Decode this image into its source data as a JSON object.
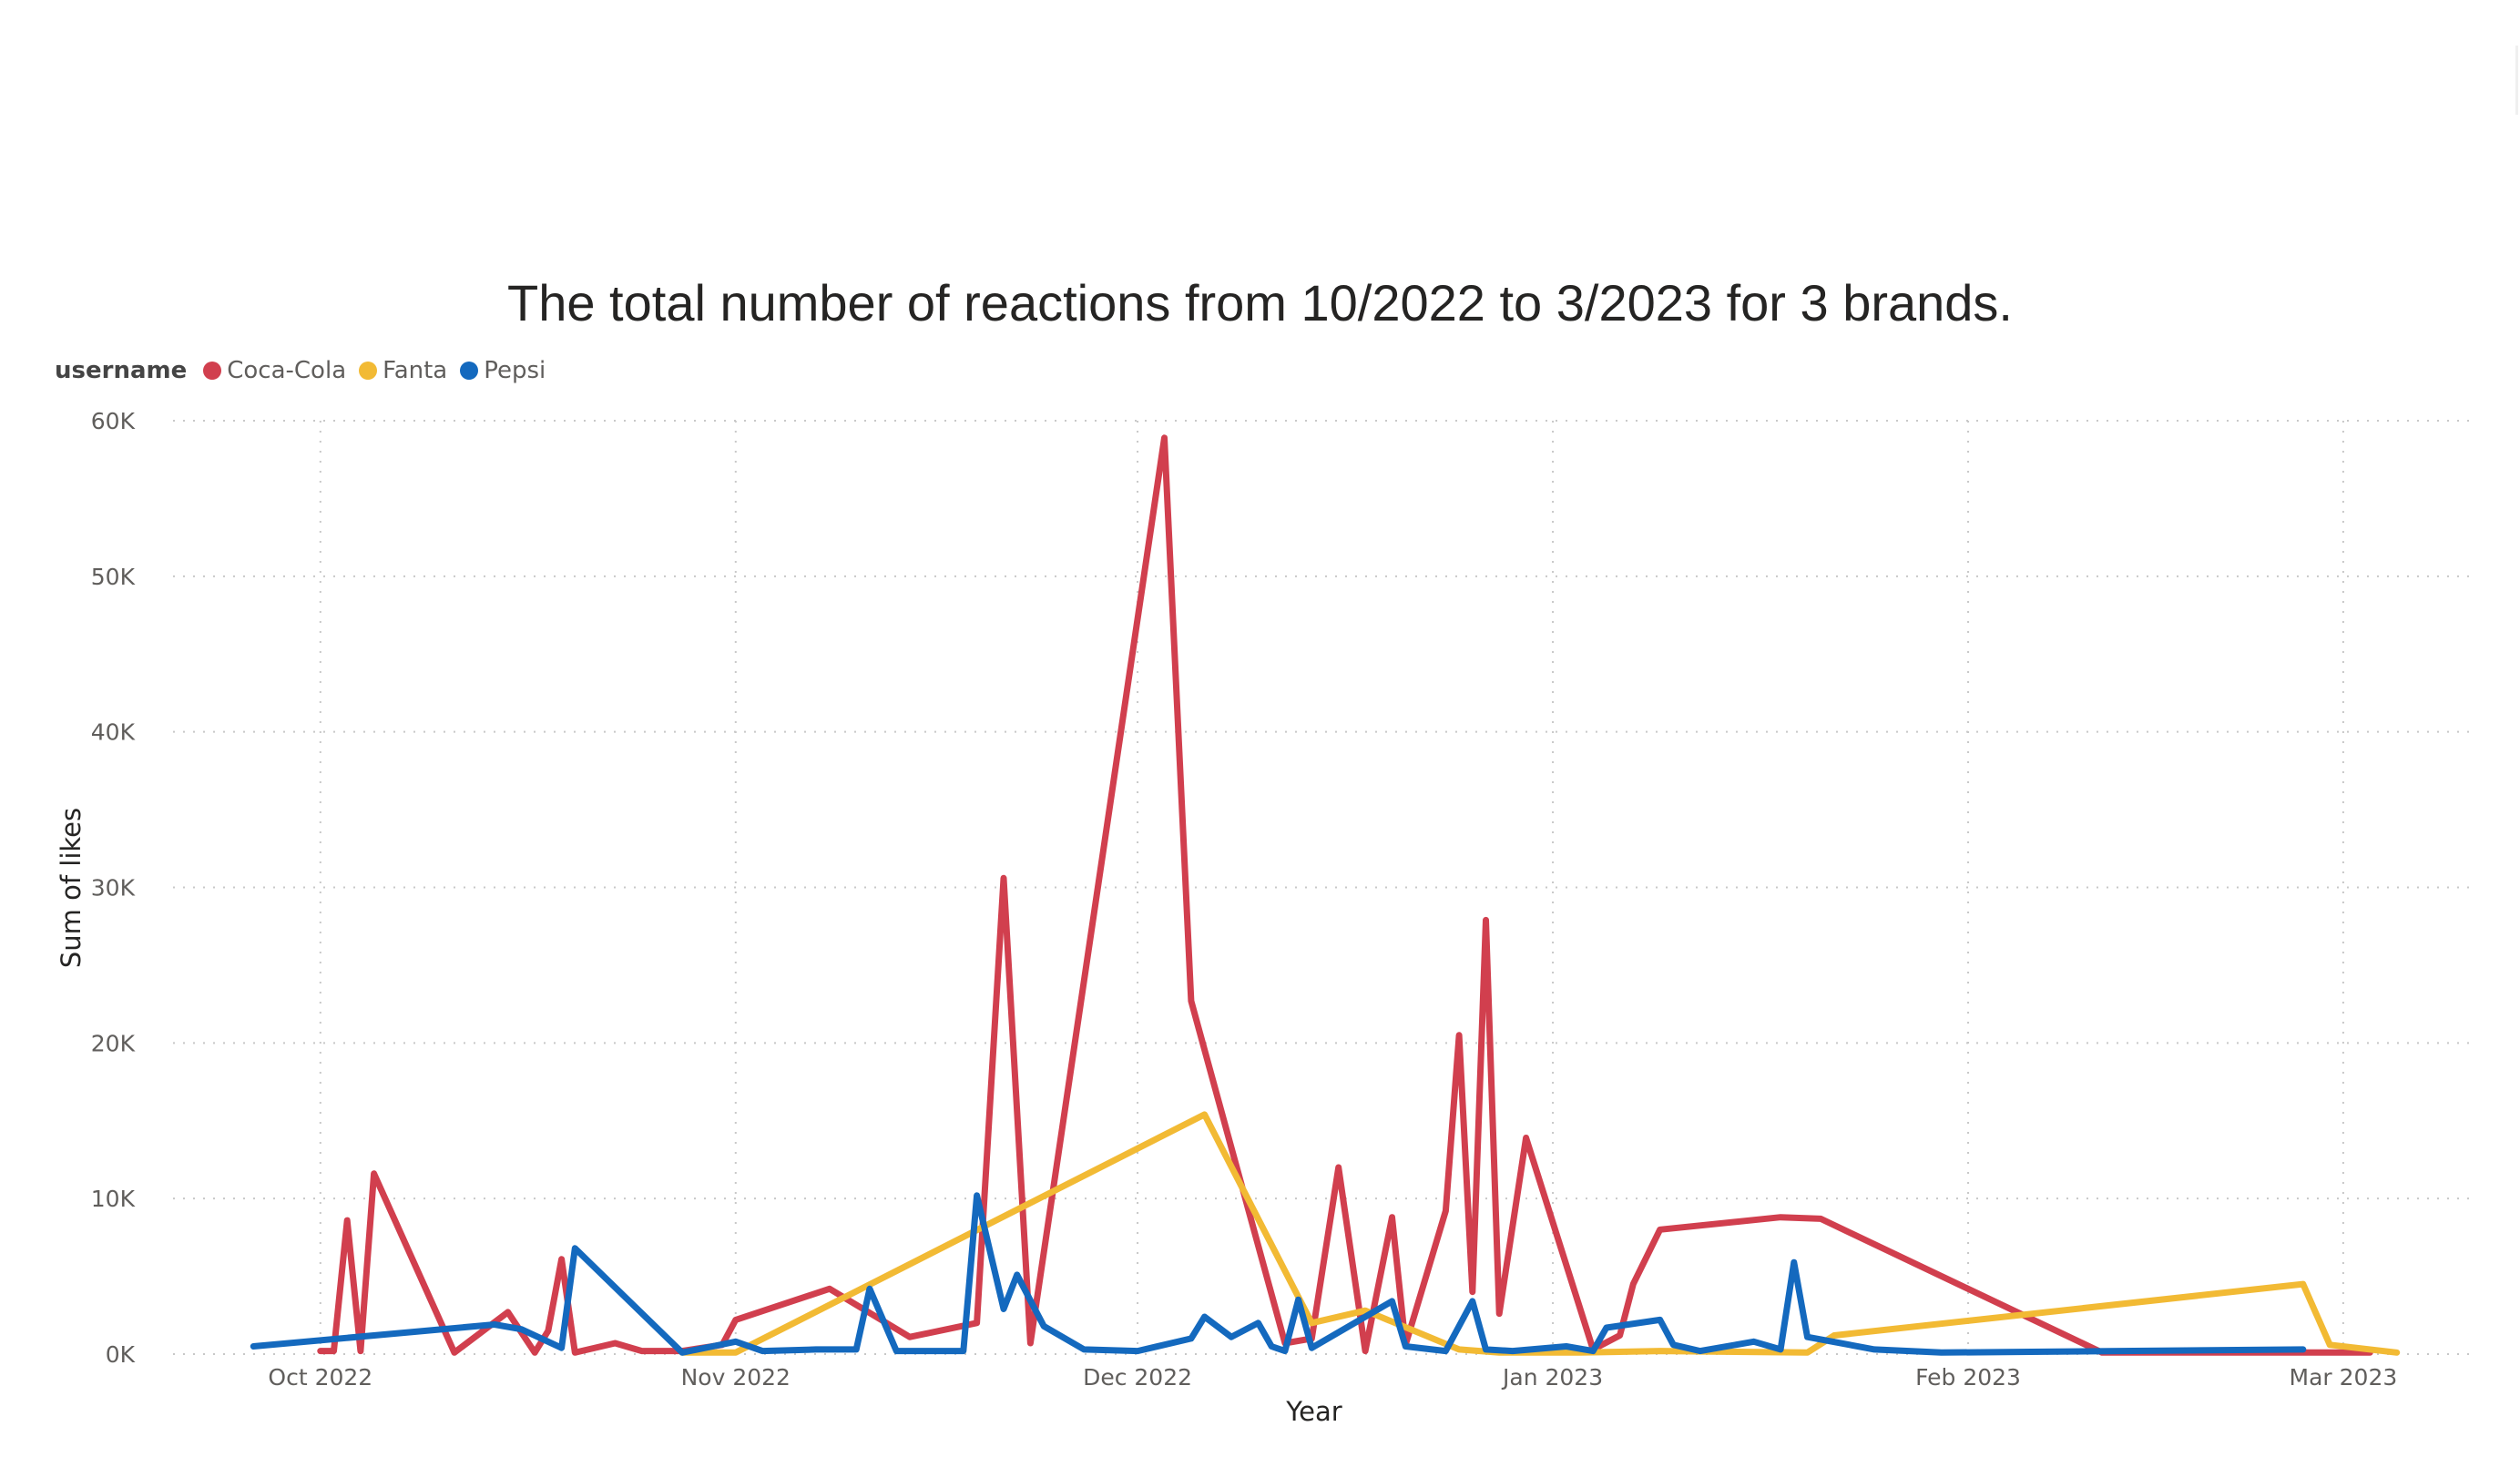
{
  "chart_data": {
    "type": "line",
    "title": "The total number of reactions from 10/2022 to 3/2023 for 3 brands.",
    "xlabel": "Year",
    "ylabel": "Sum of likes",
    "legend_title": "username",
    "legend_position": "top-left",
    "grid": true,
    "ylim": [
      0,
      60000
    ],
    "xlim": [
      "2022-09-20",
      "2023-03-11"
    ],
    "y_ticks": [
      {
        "value": 0,
        "label": "0K"
      },
      {
        "value": 10000,
        "label": "10K"
      },
      {
        "value": 20000,
        "label": "20K"
      },
      {
        "value": 30000,
        "label": "30K"
      },
      {
        "value": 40000,
        "label": "40K"
      },
      {
        "value": 50000,
        "label": "50K"
      },
      {
        "value": 60000,
        "label": "60K"
      }
    ],
    "x_ticks": [
      {
        "date": "2022-10-01",
        "label": "Oct 2022"
      },
      {
        "date": "2022-11-01",
        "label": "Nov 2022"
      },
      {
        "date": "2022-12-01",
        "label": "Dec 2022"
      },
      {
        "date": "2023-01-01",
        "label": "Jan 2023"
      },
      {
        "date": "2023-02-01",
        "label": "Feb 2023"
      },
      {
        "date": "2023-03-01",
        "label": "Mar 2023"
      }
    ],
    "series": [
      {
        "name": "Coca-Cola",
        "color": "#D13F4E",
        "points": [
          [
            "2022-10-01",
            200
          ],
          [
            "2022-10-02",
            200
          ],
          [
            "2022-10-03",
            8600
          ],
          [
            "2022-10-04",
            200
          ],
          [
            "2022-10-05",
            11600
          ],
          [
            "2022-10-11",
            100
          ],
          [
            "2022-10-15",
            2700
          ],
          [
            "2022-10-17",
            100
          ],
          [
            "2022-10-18",
            1500
          ],
          [
            "2022-10-19",
            6100
          ],
          [
            "2022-10-20",
            100
          ],
          [
            "2022-10-23",
            700
          ],
          [
            "2022-10-25",
            200
          ],
          [
            "2022-10-28",
            200
          ],
          [
            "2022-10-31",
            600
          ],
          [
            "2022-11-01",
            2200
          ],
          [
            "2022-11-08",
            4200
          ],
          [
            "2022-11-14",
            1100
          ],
          [
            "2022-11-19",
            2000
          ],
          [
            "2022-11-21",
            30600
          ],
          [
            "2022-11-23",
            700
          ],
          [
            "2022-12-03",
            58900
          ],
          [
            "2022-12-05",
            22700
          ],
          [
            "2022-12-12",
            700
          ],
          [
            "2022-12-14",
            1000
          ],
          [
            "2022-12-16",
            12000
          ],
          [
            "2022-12-18",
            200
          ],
          [
            "2022-12-20",
            8800
          ],
          [
            "2022-12-21",
            600
          ],
          [
            "2022-12-24",
            9200
          ],
          [
            "2022-12-25",
            20500
          ],
          [
            "2022-12-26",
            4000
          ],
          [
            "2022-12-27",
            27900
          ],
          [
            "2022-12-28",
            2600
          ],
          [
            "2022-12-30",
            13900
          ],
          [
            "2023-01-04",
            300
          ],
          [
            "2023-01-06",
            1200
          ],
          [
            "2023-01-07",
            4500
          ],
          [
            "2023-01-09",
            8000
          ],
          [
            "2023-01-18",
            8800
          ],
          [
            "2023-01-21",
            8700
          ],
          [
            "2023-02-11",
            100
          ],
          [
            "2023-03-03",
            100
          ]
        ]
      },
      {
        "name": "Fanta",
        "color": "#F2BA34",
        "points": [
          [
            "2022-10-28",
            100
          ],
          [
            "2022-11-01",
            100
          ],
          [
            "2022-12-06",
            15400
          ],
          [
            "2022-12-14",
            2000
          ],
          [
            "2022-12-18",
            2800
          ],
          [
            "2022-12-25",
            300
          ],
          [
            "2022-12-28",
            100
          ],
          [
            "2023-01-03",
            100
          ],
          [
            "2023-01-09",
            200
          ],
          [
            "2023-01-20",
            100
          ],
          [
            "2023-01-22",
            1200
          ],
          [
            "2023-02-26",
            4500
          ],
          [
            "2023-02-28",
            600
          ],
          [
            "2023-03-05",
            100
          ]
        ]
      },
      {
        "name": "Pepsi",
        "color": "#1469BE",
        "points": [
          [
            "2022-09-26",
            500
          ],
          [
            "2022-10-14",
            1900
          ],
          [
            "2022-10-16",
            1600
          ],
          [
            "2022-10-19",
            400
          ],
          [
            "2022-10-20",
            6800
          ],
          [
            "2022-10-28",
            100
          ],
          [
            "2022-11-01",
            800
          ],
          [
            "2022-11-03",
            200
          ],
          [
            "2022-11-07",
            300
          ],
          [
            "2022-11-10",
            300
          ],
          [
            "2022-11-11",
            4200
          ],
          [
            "2022-11-13",
            200
          ],
          [
            "2022-11-18",
            200
          ],
          [
            "2022-11-19",
            10200
          ],
          [
            "2022-11-21",
            2900
          ],
          [
            "2022-11-22",
            5100
          ],
          [
            "2022-11-24",
            1800
          ],
          [
            "2022-11-27",
            300
          ],
          [
            "2022-12-01",
            200
          ],
          [
            "2022-12-05",
            1000
          ],
          [
            "2022-12-06",
            2400
          ],
          [
            "2022-12-08",
            1100
          ],
          [
            "2022-12-10",
            2000
          ],
          [
            "2022-12-11",
            500
          ],
          [
            "2022-12-12",
            200
          ],
          [
            "2022-12-13",
            3500
          ],
          [
            "2022-12-14",
            400
          ],
          [
            "2022-12-20",
            3400
          ],
          [
            "2022-12-21",
            500
          ],
          [
            "2022-12-24",
            200
          ],
          [
            "2022-12-26",
            3400
          ],
          [
            "2022-12-27",
            300
          ],
          [
            "2022-12-29",
            200
          ],
          [
            "2023-01-02",
            500
          ],
          [
            "2023-01-04",
            200
          ],
          [
            "2023-01-05",
            1700
          ],
          [
            "2023-01-09",
            2200
          ],
          [
            "2023-01-10",
            600
          ],
          [
            "2023-01-12",
            200
          ],
          [
            "2023-01-16",
            800
          ],
          [
            "2023-01-18",
            300
          ],
          [
            "2023-01-19",
            5900
          ],
          [
            "2023-01-20",
            1100
          ],
          [
            "2023-01-25",
            300
          ],
          [
            "2023-01-30",
            100
          ],
          [
            "2023-02-26",
            300
          ]
        ]
      }
    ]
  }
}
